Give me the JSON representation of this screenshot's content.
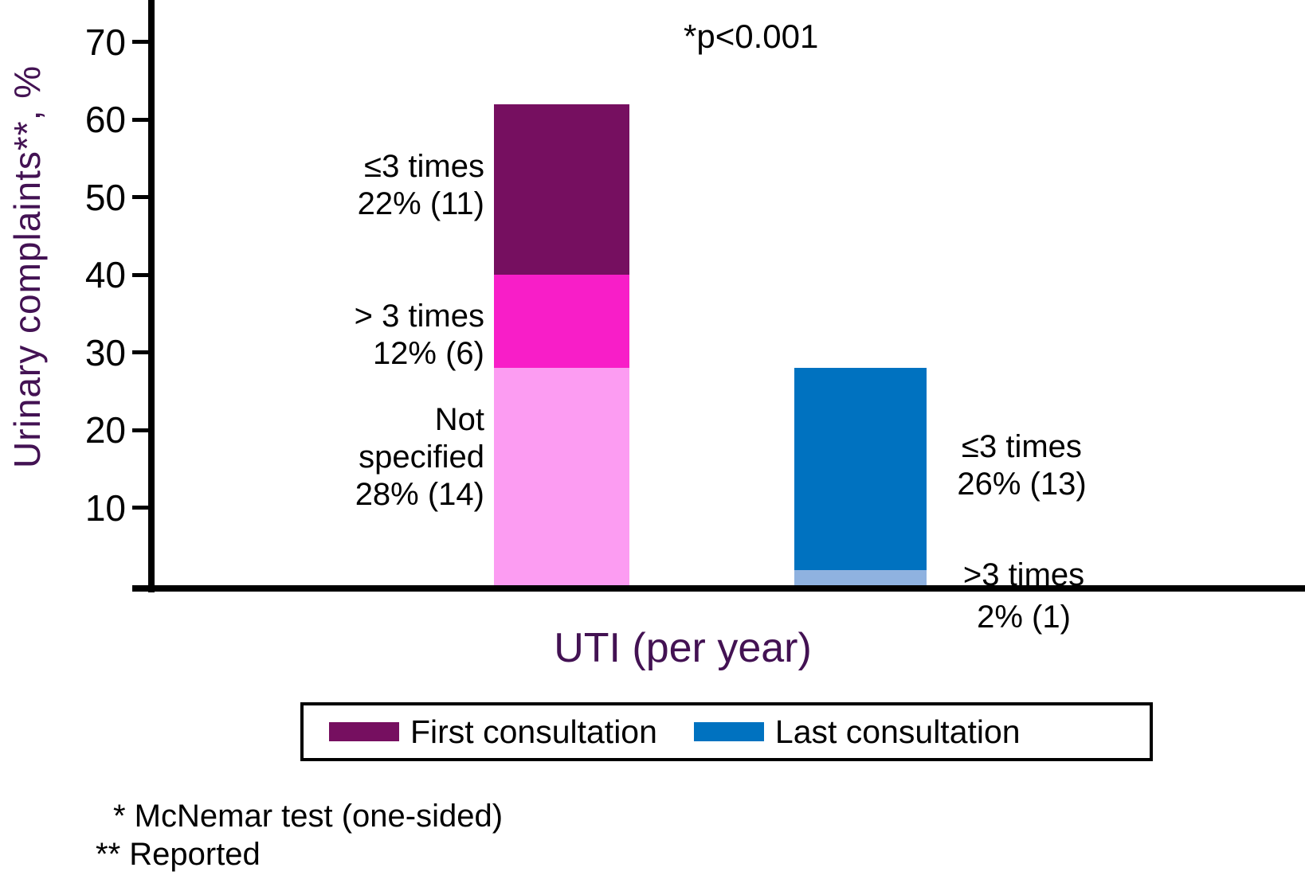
{
  "chart_data": {
    "type": "bar",
    "stacked": true,
    "title": "",
    "xlabel": "UTI (per year)",
    "ylabel": "Urinary complaints**, %",
    "ylim": [
      0,
      75
    ],
    "yticks": [
      70,
      60,
      50,
      40,
      30,
      20,
      10
    ],
    "grid": false,
    "legend_position": "bottom-box",
    "annotation": "*p<0.001",
    "axis_color": "#000000",
    "title_color": "#431253",
    "bars": [
      {
        "name": "First consultation",
        "total_pct": 62,
        "segments": [
          {
            "name": "Not specified",
            "pct": 28,
            "count": 14,
            "color": "#FC9CF2",
            "lines": [
              "Not",
              "specified",
              "28% (14)"
            ]
          },
          {
            "name": "> 3 times",
            "pct": 12,
            "count": 6,
            "color": "#F81EC8",
            "lines": [
              "> 3 times",
              "12% (6)"
            ]
          },
          {
            "name": "≤3 times",
            "pct": 22,
            "count": 11,
            "color": "#760F60",
            "lines": [
              "≤3 times",
              "22% (11)"
            ]
          }
        ]
      },
      {
        "name": "Last consultation",
        "total_pct": 28,
        "segments": [
          {
            "name": ">3 times",
            "pct": 2,
            "count": 1,
            "color": "#8FB2E0",
            "lines": [
              ">3 times",
              "2% (1)"
            ]
          },
          {
            "name": "≤3 times",
            "pct": 26,
            "count": 13,
            "color": "#0072C0",
            "lines": [
              "≤3 times",
              "26% (13)"
            ]
          }
        ]
      }
    ],
    "legend": [
      {
        "label": "First consultation",
        "color": "#760F60"
      },
      {
        "label": "Last consultation",
        "color": "#0072C0"
      }
    ],
    "footnotes": [
      "* McNemar test (one-sided)",
      "** Reported"
    ]
  }
}
